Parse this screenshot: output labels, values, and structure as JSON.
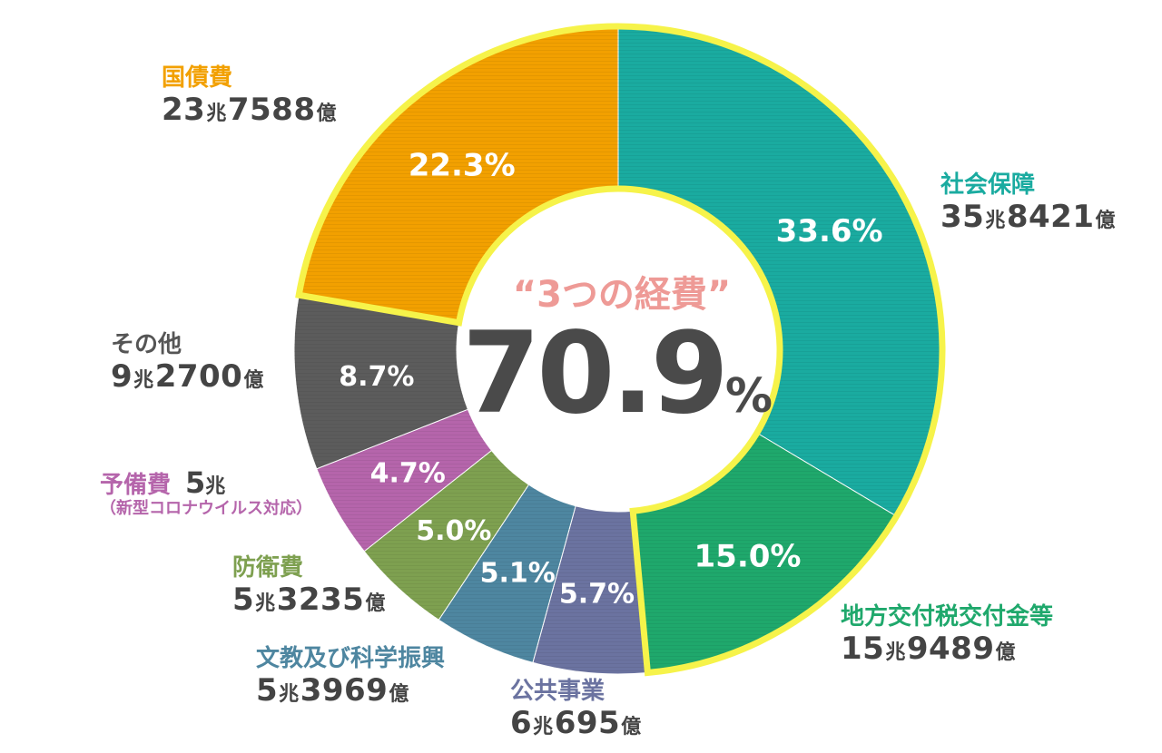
{
  "chart_data": {
    "type": "pie",
    "style": "donut",
    "slices": [
      {
        "name": "社会保障",
        "pct_label": "33.6%",
        "value": 33.6,
        "amount_main": "35",
        "amount_unit1": "兆",
        "amount_rest": "8421",
        "amount_unit2": "億",
        "color": "#1aaba0",
        "name_color": "#1aaba0"
      },
      {
        "name": "地方交付税交付金等",
        "pct_label": "15.0%",
        "value": 15.0,
        "amount_main": "15",
        "amount_unit1": "兆",
        "amount_rest": "9489",
        "amount_unit2": "億",
        "color": "#1fa86c",
        "name_color": "#1fa86c"
      },
      {
        "name": "公共事業",
        "pct_label": "5.7%",
        "value": 5.7,
        "amount_main": "6",
        "amount_unit1": "兆",
        "amount_rest": "695",
        "amount_unit2": "億",
        "color": "#6b73a0",
        "name_color": "#6b73a0"
      },
      {
        "name": "文教及び科学振興",
        "pct_label": "5.1%",
        "value": 5.1,
        "amount_main": "5",
        "amount_unit1": "兆",
        "amount_rest": "3969",
        "amount_unit2": "億",
        "color": "#4e86a0",
        "name_color": "#4e86a0"
      },
      {
        "name": "防衛費",
        "pct_label": "5.0%",
        "value": 5.0,
        "amount_main": "5",
        "amount_unit1": "兆",
        "amount_rest": "3235",
        "amount_unit2": "億",
        "color": "#7ea050",
        "name_color": "#7ea050"
      },
      {
        "name": "予備費",
        "pct_label": "4.7%",
        "value": 4.7,
        "amount_main": "5",
        "amount_unit1": "兆",
        "amount_rest": "",
        "amount_unit2": "",
        "note": "（新型コロナウイルス対応）",
        "color": "#b565ab",
        "name_color": "#b565ab"
      },
      {
        "name": "その他",
        "pct_label": "8.7%",
        "value": 8.7,
        "amount_main": "9",
        "amount_unit1": "兆",
        "amount_rest": "2700",
        "amount_unit2": "億",
        "color": "#5c5c5c",
        "name_color": "#555555"
      },
      {
        "name": "国債費",
        "pct_label": "22.3%",
        "value": 22.3,
        "amount_main": "23",
        "amount_unit1": "兆",
        "amount_rest": "7588",
        "amount_unit2": "億",
        "color": "#f2a000",
        "name_color": "#f2a000"
      }
    ],
    "highlight_group": [
      "社会保障",
      "地方交付税交付金等",
      "国債費"
    ],
    "highlight_color": "#f6f34a",
    "center_title": "“3つの経費”",
    "center_value": "70.9",
    "center_unit": "%"
  }
}
